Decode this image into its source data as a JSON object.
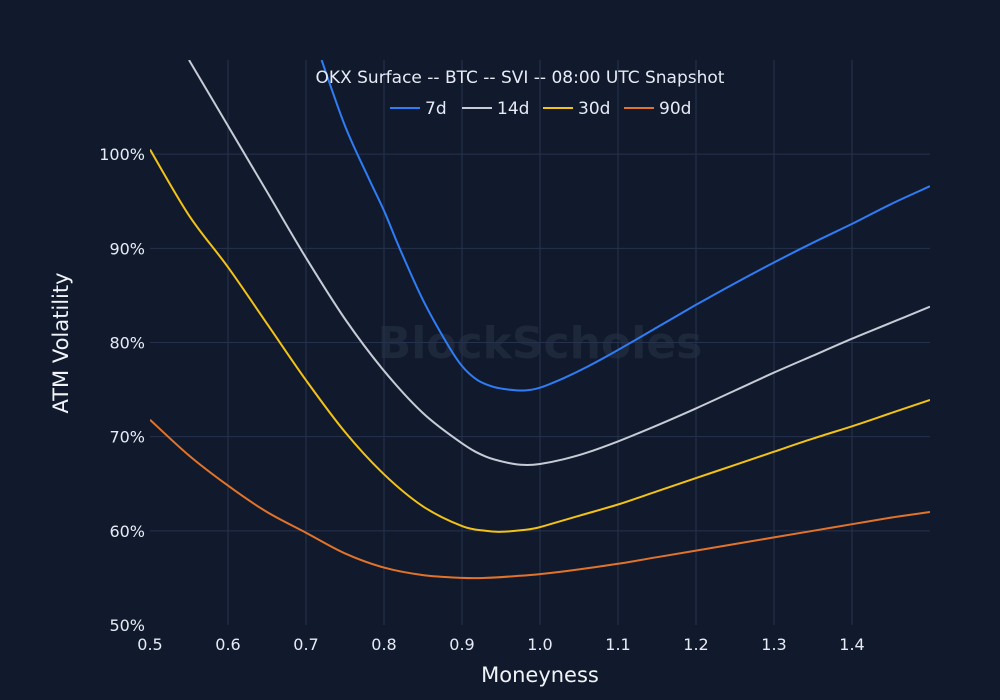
{
  "watermark": "BlockScholes",
  "chart_data": {
    "type": "line",
    "title": "OKX Surface -- BTC -- SVI -- 08:00 UTC Snapshot",
    "xlabel": "Moneyness",
    "ylabel": "ATM Volatility",
    "xlim": [
      0.5,
      1.5
    ],
    "ylim": [
      50,
      110
    ],
    "x_ticks": [
      0.5,
      0.6,
      0.7,
      0.8,
      0.9,
      1.0,
      1.1,
      1.2,
      1.3,
      1.4
    ],
    "x_tick_labels": [
      "0.5",
      "0.6",
      "0.7",
      "0.8",
      "0.9",
      "1.0",
      "1.1",
      "1.2",
      "1.3",
      "1.4"
    ],
    "y_ticks": [
      50,
      60,
      70,
      80,
      90,
      100
    ],
    "y_tick_labels": [
      "50%",
      "60%",
      "70%",
      "80%",
      "90%",
      "100%"
    ],
    "grid": true,
    "legend_position": "top-center",
    "series": [
      {
        "name": "7d",
        "color": "#2f7df6",
        "x": [
          0.72,
          0.75,
          0.78,
          0.8,
          0.82,
          0.85,
          0.88,
          0.9,
          0.92,
          0.94,
          0.96,
          0.98,
          1.0,
          1.03,
          1.06,
          1.1,
          1.15,
          1.2,
          1.25,
          1.3,
          1.35,
          1.4,
          1.45,
          1.5
        ],
        "y": [
          110,
          103,
          97.5,
          94,
          90,
          84.5,
          80,
          77.5,
          76,
          75.3,
          75,
          74.9,
          75.2,
          76.2,
          77.4,
          79.2,
          81.6,
          84,
          86.3,
          88.5,
          90.6,
          92.6,
          94.7,
          96.6
        ]
      },
      {
        "name": "14d",
        "color": "#c6ccd6",
        "x": [
          0.55,
          0.6,
          0.65,
          0.7,
          0.75,
          0.8,
          0.85,
          0.9,
          0.93,
          0.96,
          0.98,
          1.0,
          1.03,
          1.06,
          1.1,
          1.15,
          1.2,
          1.25,
          1.3,
          1.35,
          1.4,
          1.45,
          1.5
        ],
        "y": [
          110,
          103,
          96,
          89,
          82.5,
          77,
          72.5,
          69.3,
          67.9,
          67.2,
          67,
          67.1,
          67.6,
          68.3,
          69.5,
          71.2,
          73,
          74.9,
          76.8,
          78.6,
          80.4,
          82.1,
          83.8
        ]
      },
      {
        "name": "30d",
        "color": "#f2c218",
        "x": [
          0.5,
          0.55,
          0.6,
          0.65,
          0.7,
          0.75,
          0.8,
          0.85,
          0.9,
          0.93,
          0.95,
          0.98,
          1.0,
          1.05,
          1.1,
          1.15,
          1.2,
          1.25,
          1.3,
          1.35,
          1.4,
          1.45,
          1.5
        ],
        "y": [
          100.5,
          93.5,
          88,
          82,
          76,
          70.5,
          66,
          62.6,
          60.5,
          60,
          59.9,
          60.1,
          60.4,
          61.6,
          62.8,
          64.2,
          65.6,
          67,
          68.4,
          69.8,
          71.1,
          72.5,
          73.9
        ]
      },
      {
        "name": "90d",
        "color": "#e2732a",
        "x": [
          0.5,
          0.55,
          0.6,
          0.65,
          0.7,
          0.75,
          0.8,
          0.85,
          0.9,
          0.93,
          0.97,
          1.0,
          1.05,
          1.1,
          1.15,
          1.2,
          1.25,
          1.3,
          1.35,
          1.4,
          1.45,
          1.5
        ],
        "y": [
          71.8,
          68,
          64.8,
          62,
          59.8,
          57.6,
          56.1,
          55.3,
          55,
          55,
          55.2,
          55.4,
          55.9,
          56.5,
          57.2,
          57.9,
          58.6,
          59.3,
          60,
          60.7,
          61.4,
          62
        ]
      }
    ]
  }
}
